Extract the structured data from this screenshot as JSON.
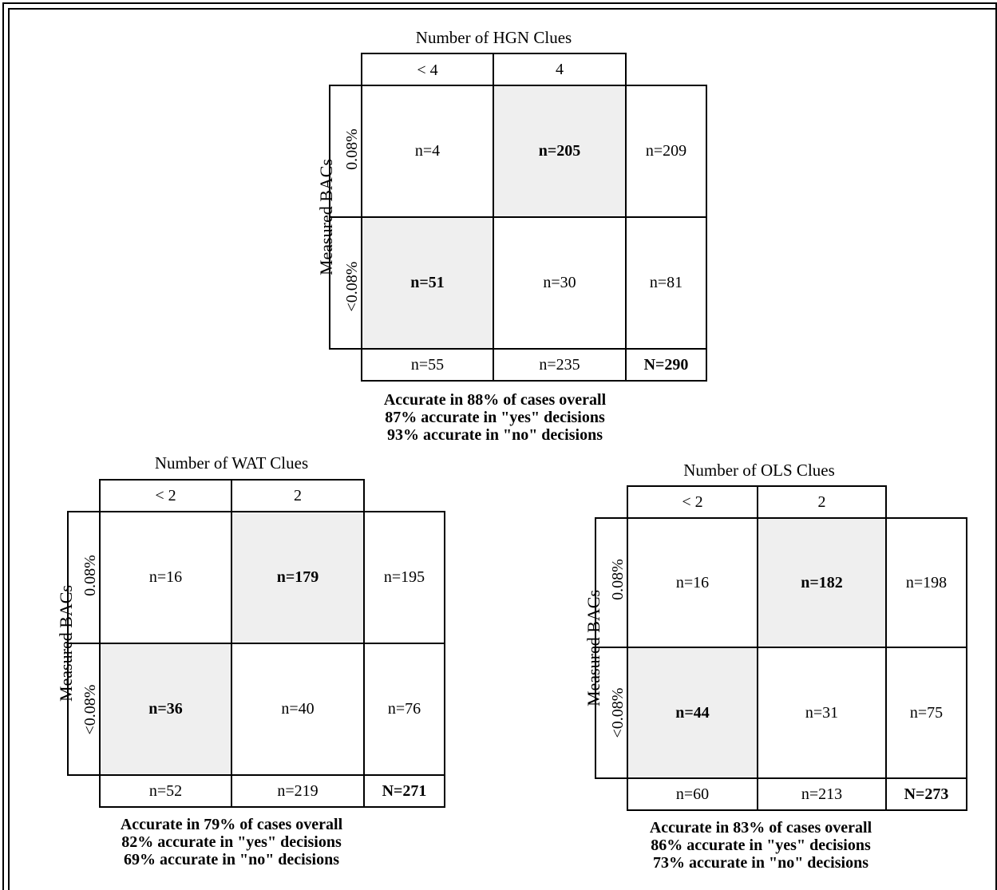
{
  "tables": {
    "hgn": {
      "title": "Number of HGN Clues",
      "col_headers": [
        "< 4",
        "4"
      ],
      "row_axis_label": "Measured BACs",
      "row_headers": [
        "0.08%",
        "<0.08%"
      ],
      "cells": [
        [
          "n=4",
          "n=205"
        ],
        [
          "n=51",
          "n=30"
        ]
      ],
      "row_totals": [
        "n=209",
        "n=81"
      ],
      "col_totals": [
        "n=55",
        "n=235"
      ],
      "grand_total": "N=290",
      "summary": [
        "Accurate in 88% of cases overall",
        "87% accurate in \"yes\" decisions",
        "93% accurate in \"no\" decisions"
      ]
    },
    "wat": {
      "title": "Number of WAT Clues",
      "col_headers": [
        "< 2",
        "2"
      ],
      "row_axis_label": "Measured BACs",
      "row_headers": [
        "0.08%",
        "<0.08%"
      ],
      "cells": [
        [
          "n=16",
          "n=179"
        ],
        [
          "n=36",
          "n=40"
        ]
      ],
      "row_totals": [
        "n=195",
        "n=76"
      ],
      "col_totals": [
        "n=52",
        "n=219"
      ],
      "grand_total": "N=271",
      "summary": [
        "Accurate in 79% of cases overall",
        "82% accurate in \"yes\" decisions",
        "69% accurate in \"no\" decisions"
      ]
    },
    "ols": {
      "title": "Number of OLS Clues",
      "col_headers": [
        "< 2",
        "2"
      ],
      "row_axis_label": "Measured BACs",
      "row_headers": [
        "0.08%",
        "<0.08%"
      ],
      "cells": [
        [
          "n=16",
          "n=182"
        ],
        [
          "n=44",
          "n=31"
        ]
      ],
      "row_totals": [
        "n=198",
        "n=75"
      ],
      "col_totals": [
        "n=60",
        "n=213"
      ],
      "grand_total": "N=273",
      "summary": [
        "Accurate in 83% of cases overall",
        "86% accurate in \"yes\" decisions",
        "73% accurate in \"no\" decisions"
      ]
    }
  }
}
